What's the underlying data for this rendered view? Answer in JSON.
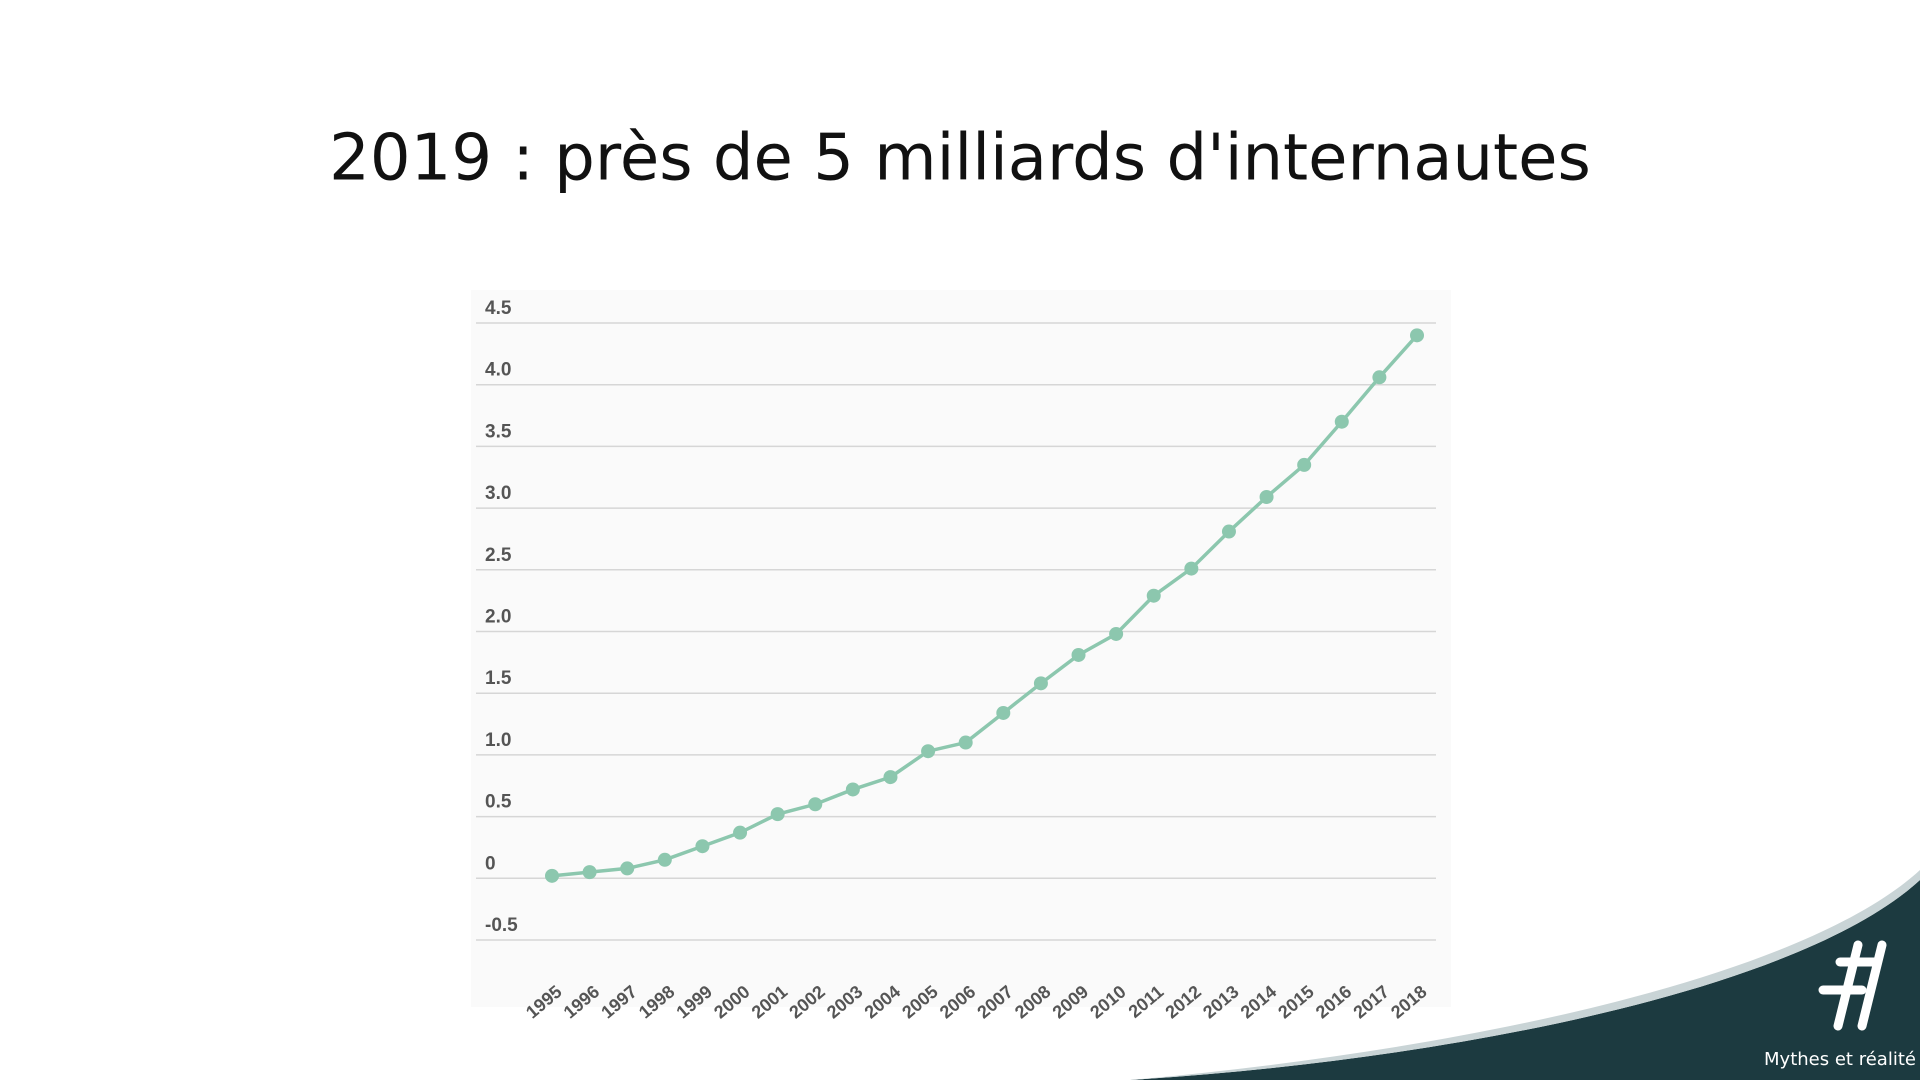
{
  "chart_data": {
    "type": "line",
    "title": "2019 : près de 5 milliards d'internautes",
    "categories": [
      "1995",
      "1996",
      "1997",
      "1998",
      "1999",
      "2000",
      "2001",
      "2002",
      "2003",
      "2004",
      "2005",
      "2006",
      "2007",
      "2008",
      "2009",
      "2010",
      "2011",
      "2012",
      "2013",
      "2014",
      "2015",
      "2016",
      "2017",
      "2018"
    ],
    "values": [
      0.02,
      0.05,
      0.08,
      0.15,
      0.26,
      0.37,
      0.52,
      0.6,
      0.72,
      0.82,
      1.03,
      1.1,
      1.34,
      1.58,
      1.81,
      1.98,
      2.29,
      2.51,
      2.81,
      3.09,
      3.35,
      3.7,
      4.06,
      4.4
    ],
    "color": "#8cc7ae",
    "ylim": [
      -0.5,
      4.5
    ],
    "yticks": [
      -0.5,
      0,
      0.5,
      {
        "value": 1,
        "label": "1.0"
      },
      1.5,
      {
        "value": 2,
        "label": "2.0"
      },
      2.5,
      {
        "value": 3,
        "label": "3.0"
      },
      3.5,
      {
        "value": 4,
        "label": "4.0"
      },
      4.5
    ],
    "grid": true
  },
  "footer": "Mythes et réalité"
}
